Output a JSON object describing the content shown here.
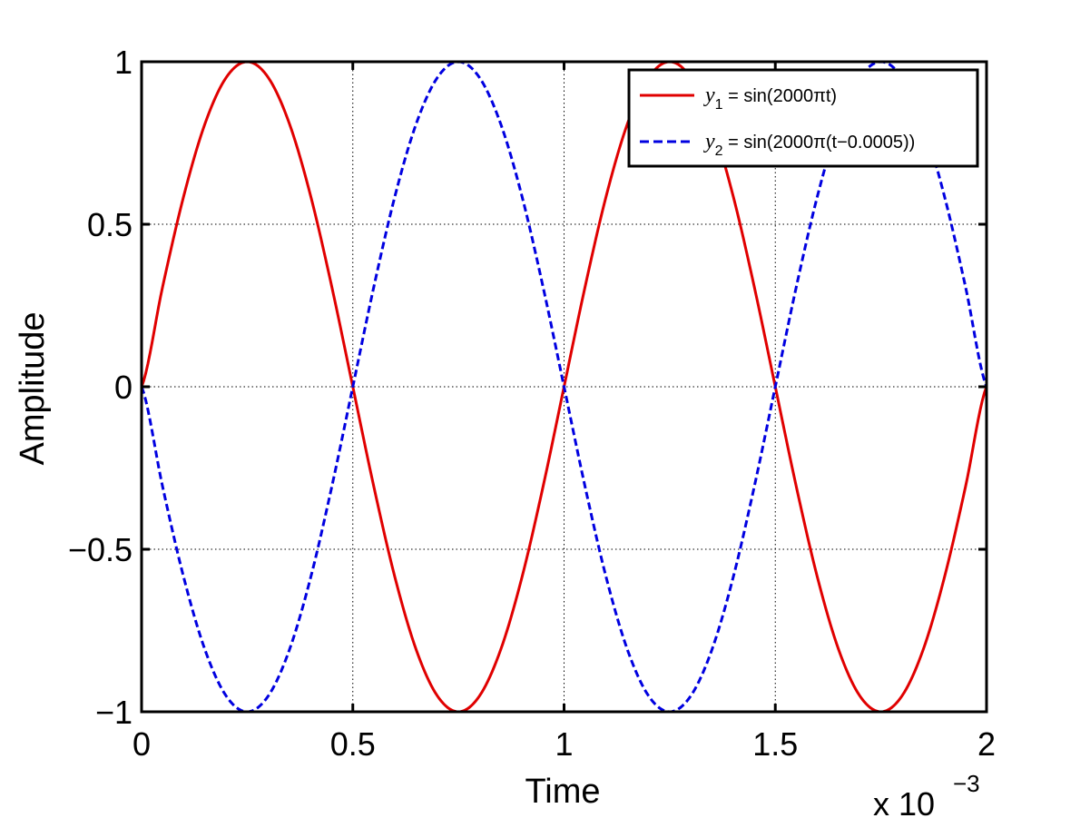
{
  "chart_data": {
    "type": "line",
    "title": "",
    "xlabel": "Time",
    "ylabel": "Amplitude",
    "x_exponent_label": {
      "prefix": "x 10",
      "exponent": "−3"
    },
    "xlim": [
      0,
      2
    ],
    "ylim": [
      -1,
      1
    ],
    "x_ticks": [
      0,
      0.5,
      1,
      1.5,
      2
    ],
    "x_tick_labels": [
      "0",
      "0.5",
      "1",
      "1.5",
      "2"
    ],
    "y_ticks": [
      -1,
      -0.5,
      0,
      0.5,
      1
    ],
    "y_tick_labels": [
      "−1",
      "−0.5",
      "0",
      "0.5",
      "1"
    ],
    "grid": true,
    "grid_style": "dotted",
    "legend_position": "top-right",
    "series": [
      {
        "name_parts": {
          "sym": "y",
          "sub": "1",
          "rest": " = sin(2000πt)"
        },
        "color": "#e00000",
        "style": "solid",
        "x": [
          0,
          0.05,
          0.1,
          0.15,
          0.2,
          0.25,
          0.3,
          0.35,
          0.4,
          0.45,
          0.5,
          0.55,
          0.6,
          0.65,
          0.7,
          0.75,
          0.8,
          0.85,
          0.9,
          0.95,
          1,
          1.05,
          1.1,
          1.15,
          1.2,
          1.25,
          1.3,
          1.35,
          1.4,
          1.45,
          1.5,
          1.55,
          1.6,
          1.65,
          1.7,
          1.75,
          1.8,
          1.85,
          1.9,
          1.95,
          2
        ],
        "y": [
          0,
          0.309,
          0.588,
          0.809,
          0.951,
          1,
          0.951,
          0.809,
          0.588,
          0.309,
          0,
          -0.309,
          -0.588,
          -0.809,
          -0.951,
          -1,
          -0.951,
          -0.809,
          -0.588,
          -0.309,
          0,
          0.309,
          0.588,
          0.809,
          0.951,
          1,
          0.951,
          0.809,
          0.588,
          0.309,
          0,
          -0.309,
          -0.588,
          -0.809,
          -0.951,
          -1,
          -0.951,
          -0.809,
          -0.588,
          -0.309,
          0
        ]
      },
      {
        "name_parts": {
          "sym": "y",
          "sub": "2",
          "rest": " = sin(2000π(t−0.0005))"
        },
        "color": "#0000e0",
        "style": "dashed",
        "x": [
          0,
          0.05,
          0.1,
          0.15,
          0.2,
          0.25,
          0.3,
          0.35,
          0.4,
          0.45,
          0.5,
          0.55,
          0.6,
          0.65,
          0.7,
          0.75,
          0.8,
          0.85,
          0.9,
          0.95,
          1,
          1.05,
          1.1,
          1.15,
          1.2,
          1.25,
          1.3,
          1.35,
          1.4,
          1.45,
          1.5,
          1.55,
          1.6,
          1.65,
          1.7,
          1.75,
          1.8,
          1.85,
          1.9,
          1.95,
          2
        ],
        "y": [
          0,
          -0.309,
          -0.588,
          -0.809,
          -0.951,
          -1,
          -0.951,
          -0.809,
          -0.588,
          -0.309,
          0,
          0.309,
          0.588,
          0.809,
          0.951,
          1,
          0.951,
          0.809,
          0.588,
          0.309,
          0,
          -0.309,
          -0.588,
          -0.809,
          -0.951,
          -1,
          -0.951,
          -0.809,
          -0.588,
          -0.309,
          0,
          0.309,
          0.588,
          0.809,
          0.951,
          1,
          0.951,
          0.809,
          0.588,
          0.309,
          0
        ]
      }
    ]
  }
}
